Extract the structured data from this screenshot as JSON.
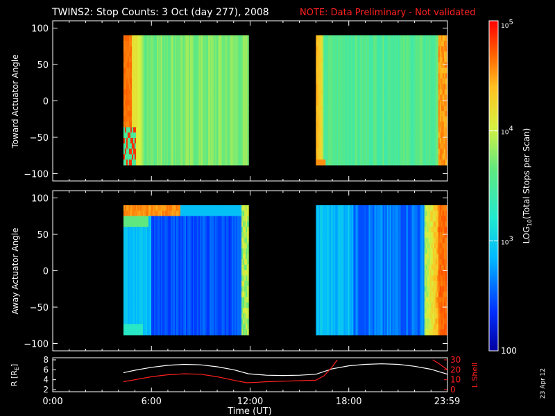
{
  "title": {
    "main": "TWINS2: Stop Counts:  3 Oct (day 277), 2008",
    "note": "NOTE: Data Preliminary - Not validated"
  },
  "chart_data": [
    {
      "type": "heatmap",
      "name": "toward-panel",
      "ylabel": "Toward Actuator Angle",
      "ylim": [
        -110,
        110
      ],
      "yticks": [
        100,
        50,
        0,
        -50,
        -100
      ],
      "xlim": [
        0,
        24
      ],
      "angle_range": [
        -88,
        90
      ],
      "data_blocks": [
        {
          "x_start": 4.3,
          "x_end": 11.9,
          "pattern": "toward1"
        },
        {
          "x_start": 16.0,
          "x_end": 23.95,
          "pattern": "toward2"
        }
      ]
    },
    {
      "type": "heatmap",
      "name": "away-panel",
      "ylabel": "Away Actuator Angle",
      "ylim": [
        -110,
        110
      ],
      "yticks": [
        100,
        50,
        0,
        -50,
        -100
      ],
      "xlim": [
        0,
        24
      ],
      "angle_range": [
        -88,
        90
      ],
      "data_blocks": [
        {
          "x_start": 4.3,
          "x_end": 11.9,
          "pattern": "away1"
        },
        {
          "x_start": 16.0,
          "x_end": 23.95,
          "pattern": "away2"
        }
      ]
    },
    {
      "type": "line",
      "name": "orbit-panel",
      "ylabel_left": "R [RE]",
      "ylabel_right": "L Shell",
      "ylim_left": [
        2,
        8
      ],
      "yticks_left": [
        8,
        6,
        4,
        2
      ],
      "ylim_right": [
        0,
        30
      ],
      "yticks_right": [
        30,
        20,
        10,
        0
      ],
      "xlabel": "Time (UT)",
      "xlim": [
        0,
        24
      ],
      "xticks": [
        {
          "value": 0,
          "label": "0:00"
        },
        {
          "value": 6,
          "label": "6:00"
        },
        {
          "value": 12,
          "label": "12:00"
        },
        {
          "value": 18,
          "label": "18:00"
        },
        {
          "value": 23.98,
          "label": "23:59"
        }
      ],
      "series": [
        {
          "name": "R",
          "color": "#ffffff",
          "x": [
            4.3,
            5,
            6,
            7,
            8,
            9,
            10,
            11,
            11.9,
            13,
            14,
            15,
            16,
            17,
            18,
            19,
            20,
            21,
            22,
            23,
            24
          ],
          "y": [
            5.4,
            5.9,
            6.5,
            6.9,
            7.1,
            7.0,
            6.6,
            6.0,
            5.2,
            4.9,
            4.85,
            4.9,
            5.1,
            6.2,
            6.8,
            7.1,
            7.2,
            7.1,
            6.7,
            6.1,
            5.1
          ]
        },
        {
          "name": "L Shell",
          "color": "#ff2020",
          "x": [
            4.3,
            5,
            6,
            7,
            8,
            9,
            10,
            11,
            11.8,
            12.5,
            13,
            14,
            15,
            16,
            16.5,
            17,
            17.3
          ],
          "y": [
            8,
            10,
            13,
            15,
            16,
            15.5,
            13,
            9.5,
            7,
            7.5,
            8,
            8.5,
            9,
            9.5,
            14,
            23,
            30
          ]
        },
        {
          "name": "L Shell (late)",
          "color": "#ff2020",
          "x": [
            23.1,
            23.5,
            24
          ],
          "y": [
            30,
            26,
            20
          ]
        }
      ]
    }
  ],
  "colorbar": {
    "label": "LOG10(Total Stops per Scan)",
    "label_base": "LOG",
    "label_sub": "10",
    "label_rest": "(Total Stops per Scan)",
    "range": [
      100,
      100000
    ],
    "ticks": [
      {
        "value": 100000,
        "base": "10",
        "exp": "5"
      },
      {
        "value": 10000,
        "base": "10",
        "exp": "4"
      },
      {
        "value": 1000,
        "base": "10",
        "exp": "3"
      },
      {
        "value": 100,
        "label": "100"
      }
    ]
  },
  "orbit_labels": {
    "r_base": "R [R",
    "r_sub": "E",
    "r_close": "]",
    "lshell": "L Shell"
  },
  "footer": {
    "date": "23 Apr 12"
  }
}
